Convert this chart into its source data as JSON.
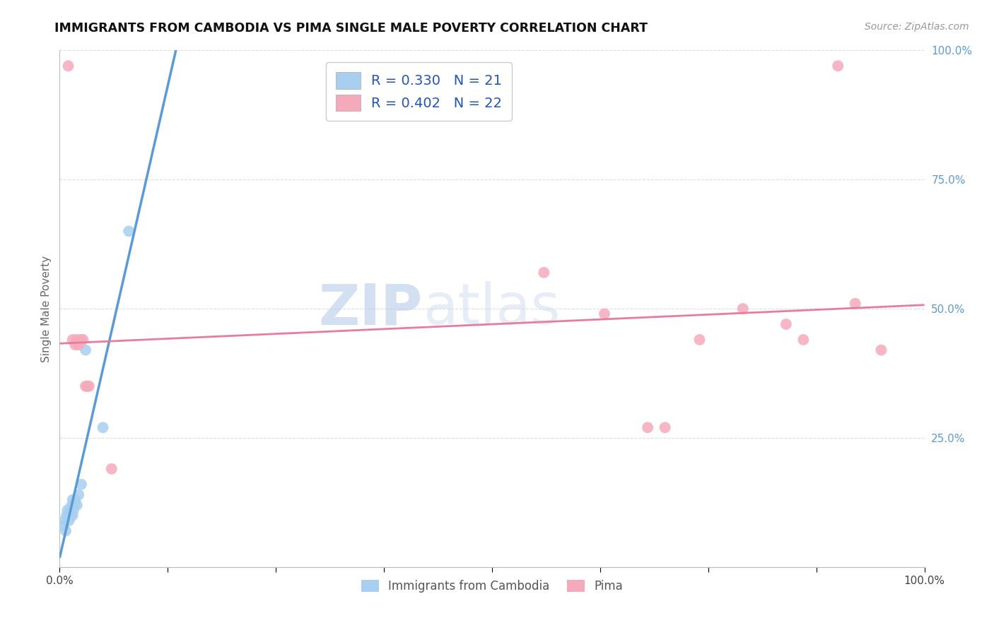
{
  "title": "IMMIGRANTS FROM CAMBODIA VS PIMA SINGLE MALE POVERTY CORRELATION CHART",
  "source": "Source: ZipAtlas.com",
  "ylabel": "Single Male Poverty",
  "legend_label1": "Immigrants from Cambodia",
  "legend_label2": "Pima",
  "R1": 0.33,
  "N1": 21,
  "R2": 0.402,
  "N2": 22,
  "color_blue": "#A8CFF0",
  "color_pink": "#F5AABB",
  "color_blue_line": "#5B9BD5",
  "color_pink_line": "#E87CA0",
  "color_diag": "#AACCEE",
  "watermark_zip": "ZIP",
  "watermark_atlas": "atlas",
  "blue_points": [
    [
      0.005,
      0.08
    ],
    [
      0.006,
      0.09
    ],
    [
      0.007,
      0.07
    ],
    [
      0.008,
      0.1
    ],
    [
      0.009,
      0.11
    ],
    [
      0.01,
      0.1
    ],
    [
      0.011,
      0.09
    ],
    [
      0.012,
      0.11
    ],
    [
      0.013,
      0.1
    ],
    [
      0.014,
      0.12
    ],
    [
      0.015,
      0.13
    ],
    [
      0.015,
      0.1
    ],
    [
      0.016,
      0.11
    ],
    [
      0.017,
      0.12
    ],
    [
      0.018,
      0.13
    ],
    [
      0.02,
      0.12
    ],
    [
      0.022,
      0.14
    ],
    [
      0.025,
      0.16
    ],
    [
      0.03,
      0.42
    ],
    [
      0.05,
      0.27
    ],
    [
      0.08,
      0.65
    ]
  ],
  "pink_points": [
    [
      0.01,
      0.97
    ],
    [
      0.015,
      0.44
    ],
    [
      0.018,
      0.43
    ],
    [
      0.02,
      0.44
    ],
    [
      0.022,
      0.43
    ],
    [
      0.025,
      0.44
    ],
    [
      0.027,
      0.44
    ],
    [
      0.03,
      0.35
    ],
    [
      0.032,
      0.35
    ],
    [
      0.034,
      0.35
    ],
    [
      0.06,
      0.19
    ],
    [
      0.56,
      0.57
    ],
    [
      0.63,
      0.49
    ],
    [
      0.68,
      0.27
    ],
    [
      0.7,
      0.27
    ],
    [
      0.74,
      0.44
    ],
    [
      0.79,
      0.5
    ],
    [
      0.84,
      0.47
    ],
    [
      0.86,
      0.44
    ],
    [
      0.9,
      0.97
    ],
    [
      0.92,
      0.51
    ],
    [
      0.95,
      0.42
    ]
  ],
  "xlim": [
    0,
    1.0
  ],
  "ylim": [
    0,
    1.0
  ],
  "yticks": [
    0.0,
    0.25,
    0.5,
    0.75,
    1.0
  ],
  "ytick_labels": [
    "",
    "25.0%",
    "50.0%",
    "75.0%",
    "100.0%"
  ],
  "xticks": [
    0.0,
    0.125,
    0.25,
    0.375,
    0.5,
    0.625,
    0.75,
    0.875,
    1.0
  ],
  "xtick_labels": [
    "0.0%",
    "",
    "",
    "",
    "",
    "",
    "",
    "",
    "100.0%"
  ],
  "grid_color": "#DDDDDD",
  "grid_style": "--",
  "background_color": "#FFFFFF"
}
